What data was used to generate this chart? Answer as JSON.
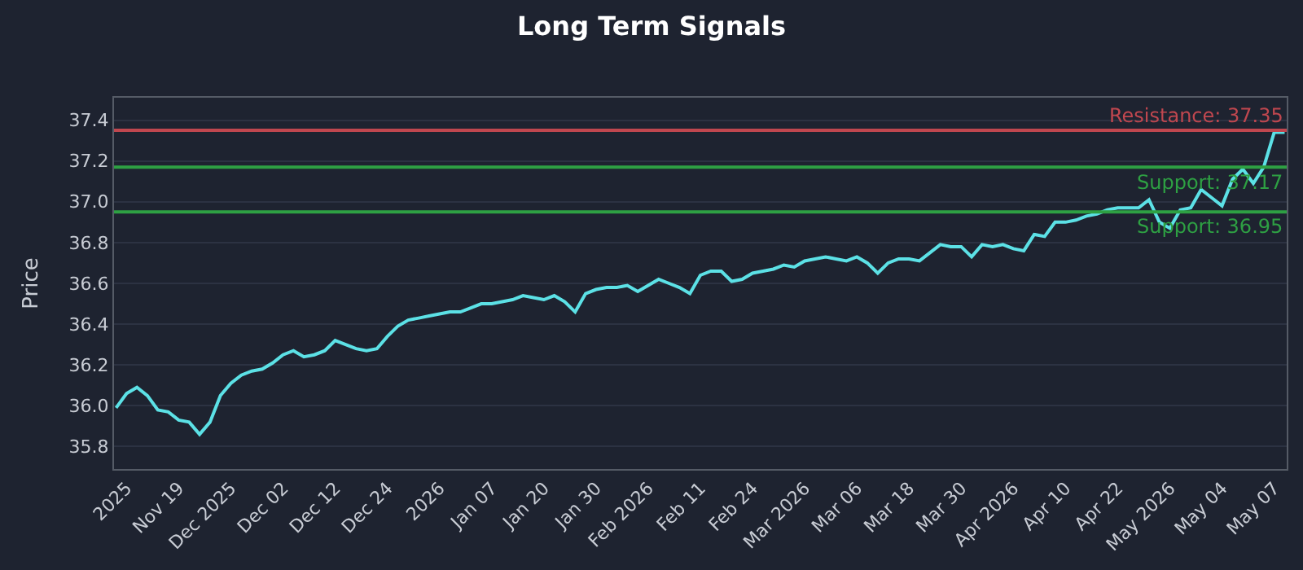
{
  "chart_data": {
    "type": "line",
    "title": "Long Term Signals",
    "ylabel": "Price",
    "categories": [
      null,
      "2025",
      null,
      null,
      null,
      null,
      "Nov 19",
      null,
      null,
      null,
      null,
      "Dec 2025",
      null,
      null,
      null,
      null,
      "Dec 02",
      null,
      null,
      null,
      null,
      "Dec 12",
      null,
      null,
      null,
      null,
      "Dec 24",
      null,
      null,
      null,
      null,
      "2026",
      null,
      null,
      null,
      null,
      "Jan 07",
      null,
      null,
      null,
      null,
      "Jan 20",
      null,
      null,
      null,
      null,
      "Jan 30",
      null,
      null,
      null,
      null,
      "Feb 2026",
      null,
      null,
      null,
      null,
      "Feb 11",
      null,
      null,
      null,
      null,
      "Feb 24",
      null,
      null,
      null,
      null,
      "Mar 2026",
      null,
      null,
      null,
      null,
      "Mar 06",
      null,
      null,
      null,
      null,
      "Mar 18",
      null,
      null,
      null,
      null,
      "Mar 30",
      null,
      null,
      null,
      null,
      "Apr 2026",
      null,
      null,
      null,
      null,
      "Apr 10",
      null,
      null,
      null,
      null,
      "Apr 22",
      null,
      null,
      null,
      null,
      "May 2026",
      null,
      null,
      null,
      null,
      "May 04",
      null,
      null,
      null,
      null,
      "May 07",
      null
    ],
    "series": [
      {
        "color": "#5ce1e6",
        "values": [
          35.99,
          36.06,
          36.09,
          36.05,
          35.98,
          35.97,
          35.93,
          35.92,
          35.86,
          35.92,
          36.05,
          36.11,
          36.15,
          36.17,
          36.18,
          36.21,
          36.25,
          36.27,
          36.24,
          36.25,
          36.27,
          36.32,
          36.3,
          36.28,
          36.27,
          36.28,
          36.34,
          36.39,
          36.42,
          36.43,
          36.44,
          36.45,
          36.46,
          36.46,
          36.48,
          36.5,
          36.5,
          36.51,
          36.52,
          36.54,
          36.53,
          36.52,
          36.54,
          36.51,
          36.46,
          36.55,
          36.57,
          36.58,
          36.58,
          36.59,
          36.56,
          36.59,
          36.62,
          36.6,
          36.58,
          36.55,
          36.64,
          36.66,
          36.66,
          36.61,
          36.62,
          36.65,
          36.66,
          36.67,
          36.69,
          36.68,
          36.71,
          36.72,
          36.73,
          36.72,
          36.71,
          36.73,
          36.7,
          36.65,
          36.7,
          36.72,
          36.72,
          36.71,
          36.75,
          36.79,
          36.78,
          36.78,
          36.73,
          36.79,
          36.78,
          36.79,
          36.77,
          36.76,
          36.84,
          36.83,
          36.9,
          36.9,
          36.91,
          36.93,
          36.94,
          36.96,
          36.97,
          36.97,
          36.97,
          37.01,
          36.9,
          36.87,
          36.96,
          36.97,
          37.06,
          37.02,
          36.98,
          37.11,
          37.16,
          37.09,
          37.17,
          37.34,
          37.34
        ]
      }
    ],
    "ylim": [
      35.69,
      37.51
    ],
    "yticks": [
      35.8,
      36.2,
      36.4,
      36.6,
      36.8,
      {
        "value": 36,
        "label": "36.0"
      },
      {
        "value": 37,
        "label": "37.0"
      },
      37.2,
      37.4
    ],
    "grid": "y",
    "marker": "none",
    "line_style": "solid",
    "ref_lines": [
      {
        "axis": "y",
        "value": 37.35,
        "label": "Resistance: 37.35",
        "color": "#c0474f"
      },
      {
        "axis": "y",
        "value": 37.17,
        "label": "Support: 37.17",
        "color": "#2ea043"
      },
      {
        "axis": "y",
        "value": 36.95,
        "label": "Support: 36.95",
        "color": "#2ea043"
      }
    ]
  }
}
